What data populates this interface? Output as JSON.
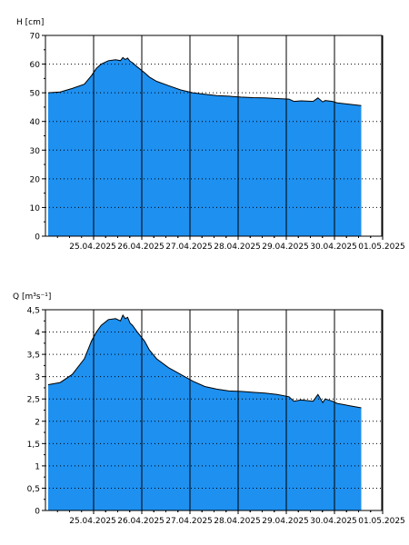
{
  "chart_data": [
    {
      "type": "area",
      "ylabel": "H [cm]",
      "ylim": [
        0,
        70
      ],
      "y_ticks": [
        0,
        10,
        20,
        30,
        40,
        50,
        60,
        70
      ],
      "x_tick_labels": [
        "25.04.2025",
        "26.04.2025",
        "27.04.2025",
        "28.04.2025",
        "29.04.2025",
        "30.04.2025",
        "01.05.2025"
      ],
      "grid": true,
      "fill_color": "#1E90F0",
      "line_color": "#000000",
      "x": [
        0,
        0.25,
        0.5,
        0.75,
        0.9,
        1.0,
        1.1,
        1.25,
        1.4,
        1.5,
        1.55,
        1.6,
        1.65,
        1.7,
        1.75,
        1.85,
        2.0,
        2.1,
        2.25,
        2.5,
        2.75,
        3.0,
        3.25,
        3.5,
        3.75,
        4.0,
        4.25,
        4.5,
        4.75,
        5.0,
        5.1,
        5.25,
        5.5,
        5.6,
        5.7,
        5.75,
        5.9,
        6.0,
        6.25,
        6.5
      ],
      "y": [
        50,
        50.3,
        51.5,
        53,
        56,
        58.5,
        60,
        61.2,
        61.5,
        61.2,
        62.3,
        61.6,
        62.1,
        61,
        60.5,
        59,
        57,
        55.5,
        54,
        52.5,
        51,
        50,
        49.5,
        49,
        48.8,
        48.5,
        48.3,
        48.2,
        48,
        47.8,
        47,
        47.2,
        47,
        48.2,
        46.8,
        47.3,
        47,
        46.5,
        46,
        45.5
      ]
    },
    {
      "type": "area",
      "ylabel": "Q [m³s⁻¹]",
      "ylim": [
        0,
        4.5
      ],
      "y_ticks": [
        0,
        0.5,
        1,
        1.5,
        2,
        2.5,
        3,
        3.5,
        4,
        4.5
      ],
      "y_tick_labels": [
        "0",
        "0,5",
        "1",
        "1,5",
        "2",
        "2,5",
        "3",
        "3,5",
        "4",
        "4,5"
      ],
      "x_tick_labels": [
        "25.04.2025",
        "26.04.2025",
        "27.04.2025",
        "28.04.2025",
        "29.04.2025",
        "30.04.2025",
        "01.05.2025"
      ],
      "grid": true,
      "fill_color": "#1E90F0",
      "line_color": "#000000",
      "x": [
        0,
        0.25,
        0.5,
        0.75,
        0.9,
        1.0,
        1.1,
        1.25,
        1.4,
        1.5,
        1.55,
        1.6,
        1.65,
        1.7,
        1.75,
        1.85,
        2.0,
        2.1,
        2.25,
        2.5,
        2.75,
        3.0,
        3.25,
        3.5,
        3.75,
        4.0,
        4.25,
        4.5,
        4.75,
        5.0,
        5.1,
        5.25,
        5.5,
        5.6,
        5.7,
        5.75,
        5.9,
        6.0,
        6.25,
        6.5
      ],
      "y": [
        2.82,
        2.87,
        3.05,
        3.4,
        3.8,
        4.0,
        4.15,
        4.28,
        4.3,
        4.25,
        4.38,
        4.3,
        4.33,
        4.2,
        4.15,
        4.0,
        3.8,
        3.6,
        3.4,
        3.2,
        3.05,
        2.9,
        2.78,
        2.72,
        2.68,
        2.67,
        2.65,
        2.63,
        2.6,
        2.55,
        2.45,
        2.48,
        2.45,
        2.6,
        2.42,
        2.5,
        2.45,
        2.4,
        2.35,
        2.3
      ]
    }
  ]
}
